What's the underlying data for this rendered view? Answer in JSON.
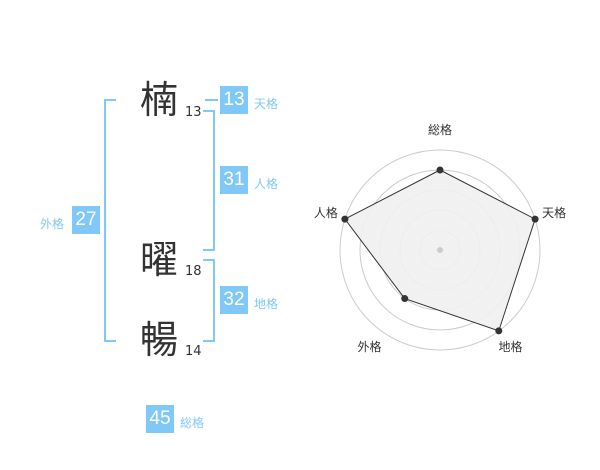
{
  "name": {
    "chars": [
      {
        "char": "楠",
        "strokes": "13"
      },
      {
        "char": "曜",
        "strokes": "18"
      },
      {
        "char": "暢",
        "strokes": "14"
      }
    ]
  },
  "fortunes": {
    "tenkaku": {
      "label": "天格",
      "value": "13"
    },
    "jinkaku": {
      "label": "人格",
      "value": "31"
    },
    "chikaku": {
      "label": "地格",
      "value": "32"
    },
    "gaikaku": {
      "label": "外格",
      "value": "27"
    },
    "soukaku": {
      "label": "総格",
      "value": "45"
    }
  },
  "colors": {
    "accent": "#80c8f8",
    "radar_fill": "#f0f0f0",
    "radar_line": "#333333",
    "ring": "#cccccc"
  },
  "chart_data": {
    "type": "radar",
    "axes": [
      "総格",
      "天格",
      "地格",
      "外格",
      "人格"
    ],
    "values": [
      4,
      5,
      5,
      3,
      5
    ],
    "max": 5,
    "rings": 5
  }
}
